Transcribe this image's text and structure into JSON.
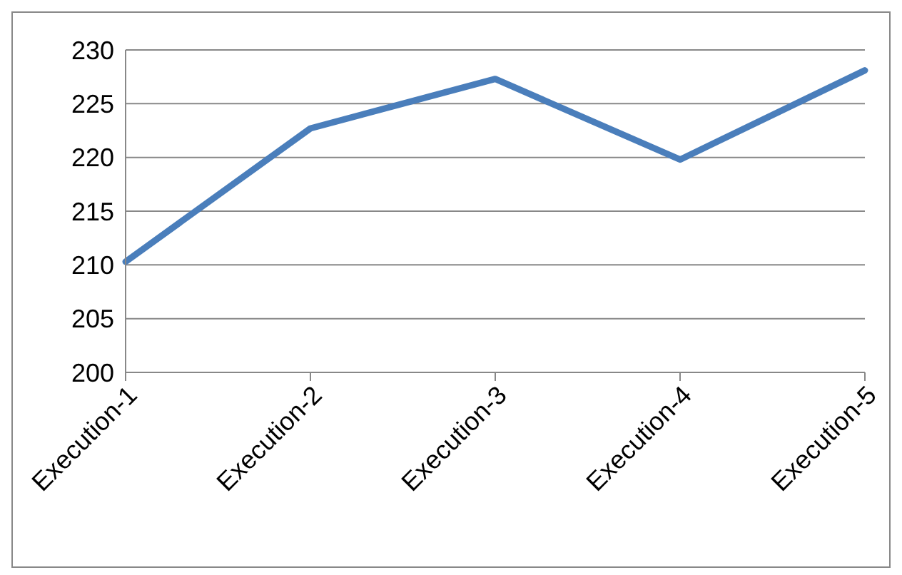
{
  "chart_data": {
    "type": "line",
    "categories": [
      "Execution-1",
      "Execution-2",
      "Execution-3",
      "Execution-4",
      "Execution-5"
    ],
    "values": [
      210.3,
      222.7,
      227.3,
      219.8,
      228.1
    ],
    "color": "#4a7ebb",
    "ylim": [
      200,
      230
    ],
    "yticks": [
      200,
      205,
      210,
      215,
      220,
      225,
      230
    ],
    "grid": "y",
    "marker": "none",
    "line_style": "solid"
  }
}
